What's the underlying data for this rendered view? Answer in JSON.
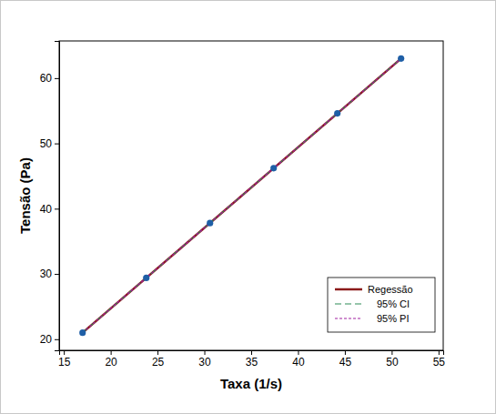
{
  "chart_data": {
    "type": "scatter",
    "x_label": "Taxa (1/s)",
    "y_label": "Tensão (Pa)",
    "x": [
      17,
      23.8,
      30.6,
      37.4,
      44.2,
      51
    ],
    "values": [
      21,
      29.4,
      37.8,
      46.2,
      54.6,
      63
    ],
    "color": "#1f5fa6",
    "marker": "circle",
    "xlim": [
      14.5,
      55.5
    ],
    "ylim": [
      18.3,
      65.7
    ],
    "xticks": [
      15,
      20,
      25,
      30,
      35,
      40,
      45,
      50,
      55
    ],
    "yticks": [
      20,
      30,
      40,
      50,
      60
    ],
    "grid": false,
    "legend": "bottom-right",
    "series": [
      {
        "name": "Regessão",
        "type": "line",
        "color": "#8b1a1a",
        "line_style": "solid",
        "x": [
          17,
          51
        ],
        "values": [
          21,
          63
        ]
      },
      {
        "name": "95% CI",
        "type": "line",
        "color": "#2e8b57",
        "line_style": "dashed",
        "x": [
          17,
          51
        ],
        "values": [
          21,
          63
        ]
      },
      {
        "name": "95% PI",
        "type": "line",
        "color": "#a020a0",
        "line_style": "dotted",
        "x": [
          17,
          51
        ],
        "values": [
          21,
          63
        ]
      }
    ]
  }
}
